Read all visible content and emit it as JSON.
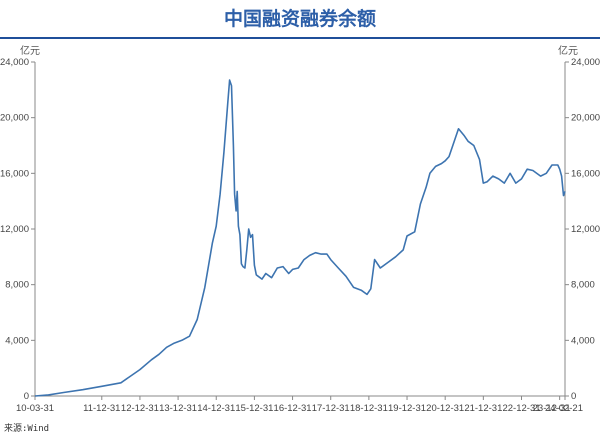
{
  "title": "中国融资融券余额",
  "unit_left": "亿元",
  "unit_right": "亿元",
  "source": "来源:Wind",
  "colors": {
    "title": "#2d5fa8",
    "rule": "#1f4f9a",
    "line": "#3d74b0",
    "axis": "#888888"
  },
  "chart_data": {
    "type": "line",
    "title": "中国融资融券余额",
    "ylabel": "亿元",
    "y2label": "亿元",
    "ylim": [
      0,
      24000
    ],
    "y_ticks": [
      "0",
      "4,000",
      "8,000",
      "12,000",
      "16,000",
      "20,000",
      "24,000"
    ],
    "y_tick_values": [
      0,
      4000,
      8000,
      12000,
      16000,
      20000,
      24000
    ],
    "x_ticks": [
      "10-03-31",
      "11-12-31",
      "12-12-31",
      "13-12-31",
      "14-12-31",
      "15-12-31",
      "16-12-31",
      "17-12-31",
      "18-12-31",
      "19-12-31",
      "20-12-31",
      "21-12-31",
      "22-12-31",
      "23-12-31",
      "24-02-21"
    ],
    "x_tick_values": [
      2010.25,
      2012.0,
      2013.0,
      2014.0,
      2015.0,
      2016.0,
      2017.0,
      2018.0,
      2019.0,
      2020.0,
      2021.0,
      2022.0,
      2023.0,
      2024.0,
      2024.14
    ],
    "xlim": [
      2010.25,
      2024.14
    ],
    "grid": false,
    "legend": "none",
    "series": [
      {
        "x": [
          2010.25,
          2010.6,
          2011.0,
          2011.5,
          2012.0,
          2012.5,
          2013.0,
          2013.3,
          2013.5,
          2013.7,
          2013.9,
          2014.1,
          2014.3,
          2014.5,
          2014.7,
          2014.9,
          2015.0,
          2015.1,
          2015.2,
          2015.3,
          2015.35,
          2015.4,
          2015.45,
          2015.48,
          2015.52,
          2015.55,
          2015.58,
          2015.62,
          2015.66,
          2015.7,
          2015.75,
          2015.8,
          2015.85,
          2015.9,
          2015.95,
          2016.0,
          2016.05,
          2016.1,
          2016.2,
          2016.3,
          2016.45,
          2016.6,
          2016.75,
          2016.9,
          2017.0,
          2017.15,
          2017.3,
          2017.45,
          2017.6,
          2017.75,
          2017.9,
          2018.0,
          2018.2,
          2018.4,
          2018.6,
          2018.8,
          2018.95,
          2019.05,
          2019.15,
          2019.3,
          2019.5,
          2019.7,
          2019.9,
          2020.0,
          2020.2,
          2020.35,
          2020.5,
          2020.6,
          2020.75,
          2020.9,
          2021.0,
          2021.1,
          2021.2,
          2021.35,
          2021.5,
          2021.6,
          2021.75,
          2021.9,
          2022.0,
          2022.1,
          2022.25,
          2022.4,
          2022.55,
          2022.7,
          2022.85,
          2023.0,
          2023.15,
          2023.3,
          2023.5,
          2023.65,
          2023.8,
          2023.95,
          2024.0,
          2024.05,
          2024.1,
          2024.14
        ],
        "y": [
          0,
          80,
          250,
          450,
          700,
          950,
          1900,
          2600,
          3000,
          3500,
          3800,
          4000,
          4300,
          5500,
          7800,
          11000,
          12200,
          14500,
          17500,
          21000,
          22700,
          22300,
          18000,
          14500,
          13300,
          14700,
          12200,
          11600,
          9500,
          9300,
          9200,
          10500,
          12000,
          11400,
          11600,
          9400,
          8700,
          8600,
          8400,
          8800,
          8500,
          9200,
          9300,
          8800,
          9100,
          9200,
          9800,
          10100,
          10300,
          10200,
          10200,
          9800,
          9200,
          8600,
          7800,
          7600,
          7300,
          7700,
          9800,
          9200,
          9600,
          10000,
          10500,
          11500,
          11800,
          13800,
          15000,
          16000,
          16500,
          16700,
          16900,
          17200,
          18000,
          19200,
          18700,
          18300,
          18000,
          17000,
          15300,
          15400,
          15800,
          15600,
          15300,
          16000,
          15300,
          15600,
          16300,
          16200,
          15800,
          16000,
          16600,
          16600,
          16300,
          15800,
          14400,
          14700
        ]
      }
    ]
  }
}
